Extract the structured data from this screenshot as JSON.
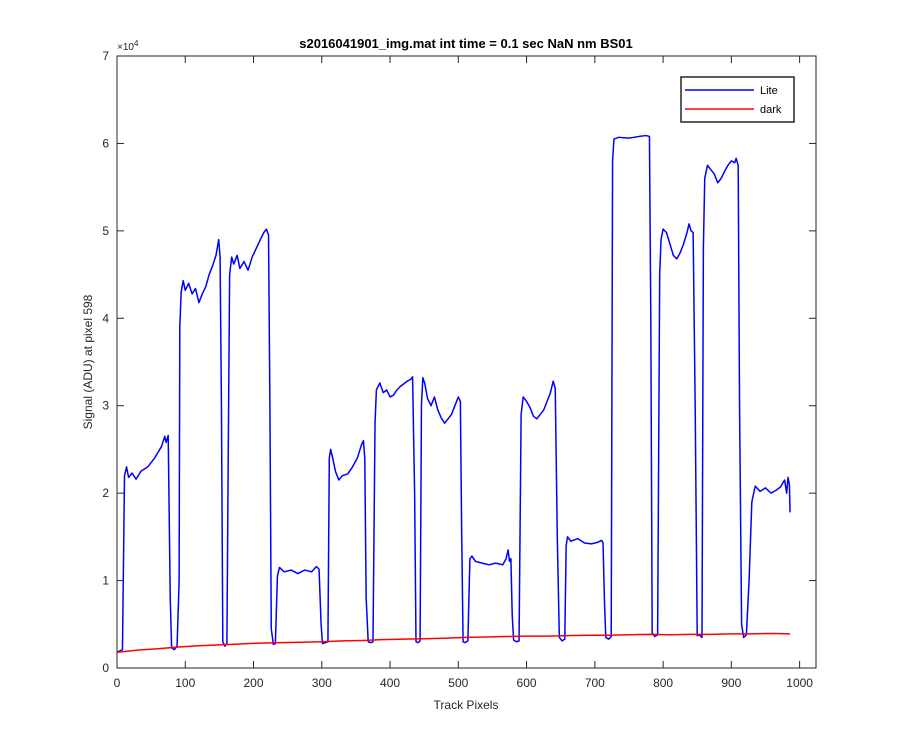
{
  "chart_data": {
    "type": "line",
    "title": "s2016041901_img.mat int time = 0.1 sec  NaN nm BS01",
    "xlabel": "Track Pixels",
    "ylabel": "Signal (ADU) at pixel 598",
    "xlim": [
      0,
      1024
    ],
    "ylim": [
      0,
      70000
    ],
    "x_ticks": [
      0,
      100,
      200,
      300,
      400,
      500,
      600,
      700,
      800,
      900,
      1000
    ],
    "y_ticks": [
      0,
      10000,
      20000,
      30000,
      40000,
      50000,
      60000,
      70000
    ],
    "y_tick_labels": [
      "0",
      "1",
      "2",
      "3",
      "4",
      "5",
      "6",
      "7"
    ],
    "y_exponent_label": "×10",
    "y_exponent_power": "4",
    "grid": false,
    "legend_position": "top-right",
    "series": [
      {
        "name": "Lite",
        "color": "#0000ff",
        "points": [
          [
            0,
            1800
          ],
          [
            5,
            2000
          ],
          [
            8,
            2100
          ],
          [
            11,
            22000
          ],
          [
            14,
            23000
          ],
          [
            17,
            21800
          ],
          [
            22,
            22300
          ],
          [
            28,
            21600
          ],
          [
            35,
            22500
          ],
          [
            45,
            23000
          ],
          [
            55,
            24000
          ],
          [
            65,
            25300
          ],
          [
            70,
            26500
          ],
          [
            72,
            25800
          ],
          [
            75,
            26600
          ],
          [
            78,
            8000
          ],
          [
            80,
            2300
          ],
          [
            84,
            2100
          ],
          [
            88,
            2500
          ],
          [
            91,
            10000
          ],
          [
            92,
            39000
          ],
          [
            94,
            43000
          ],
          [
            97,
            44300
          ],
          [
            100,
            43200
          ],
          [
            105,
            44000
          ],
          [
            110,
            42800
          ],
          [
            115,
            43400
          ],
          [
            120,
            41800
          ],
          [
            125,
            42800
          ],
          [
            130,
            43600
          ],
          [
            135,
            45000
          ],
          [
            140,
            46000
          ],
          [
            145,
            47200
          ],
          [
            149,
            49000
          ],
          [
            151,
            47000
          ],
          [
            153,
            30000
          ],
          [
            155,
            3000
          ],
          [
            158,
            2500
          ],
          [
            161,
            2800
          ],
          [
            163,
            25000
          ],
          [
            165,
            45000
          ],
          [
            168,
            47000
          ],
          [
            171,
            46200
          ],
          [
            176,
            47200
          ],
          [
            180,
            45700
          ],
          [
            186,
            46500
          ],
          [
            192,
            45500
          ],
          [
            198,
            47000
          ],
          [
            204,
            48000
          ],
          [
            210,
            49000
          ],
          [
            215,
            49800
          ],
          [
            219,
            50200
          ],
          [
            222,
            49500
          ],
          [
            224,
            30000
          ],
          [
            226,
            4500
          ],
          [
            229,
            2700
          ],
          [
            232,
            2800
          ],
          [
            235,
            10500
          ],
          [
            238,
            11500
          ],
          [
            245,
            11000
          ],
          [
            255,
            11200
          ],
          [
            265,
            10800
          ],
          [
            275,
            11200
          ],
          [
            285,
            11000
          ],
          [
            292,
            11600
          ],
          [
            296,
            11300
          ],
          [
            299,
            5000
          ],
          [
            301,
            2800
          ],
          [
            305,
            2900
          ],
          [
            309,
            3000
          ],
          [
            311,
            24000
          ],
          [
            313,
            25000
          ],
          [
            316,
            24000
          ],
          [
            320,
            22500
          ],
          [
            325,
            21500
          ],
          [
            330,
            22000
          ],
          [
            338,
            22200
          ],
          [
            345,
            23000
          ],
          [
            352,
            24000
          ],
          [
            358,
            25500
          ],
          [
            361,
            26000
          ],
          [
            363,
            24000
          ],
          [
            365,
            8000
          ],
          [
            368,
            3000
          ],
          [
            372,
            2900
          ],
          [
            375,
            3000
          ],
          [
            378,
            28000
          ],
          [
            380,
            31800
          ],
          [
            385,
            32600
          ],
          [
            390,
            31500
          ],
          [
            395,
            31800
          ],
          [
            400,
            31000
          ],
          [
            405,
            31200
          ],
          [
            410,
            31800
          ],
          [
            415,
            32200
          ],
          [
            420,
            32500
          ],
          [
            425,
            32800
          ],
          [
            430,
            33000
          ],
          [
            433,
            33300
          ],
          [
            436,
            20000
          ],
          [
            438,
            3000
          ],
          [
            441,
            2900
          ],
          [
            444,
            3100
          ],
          [
            446,
            30000
          ],
          [
            448,
            33200
          ],
          [
            451,
            32500
          ],
          [
            455,
            30800
          ],
          [
            460,
            30000
          ],
          [
            465,
            31000
          ],
          [
            470,
            29500
          ],
          [
            475,
            28600
          ],
          [
            480,
            28000
          ],
          [
            485,
            28500
          ],
          [
            490,
            29000
          ],
          [
            495,
            30000
          ],
          [
            500,
            31000
          ],
          [
            503,
            30500
          ],
          [
            505,
            15000
          ],
          [
            507,
            3000
          ],
          [
            510,
            2900
          ],
          [
            514,
            3100
          ],
          [
            517,
            12500
          ],
          [
            520,
            12800
          ],
          [
            525,
            12200
          ],
          [
            535,
            12000
          ],
          [
            545,
            11800
          ],
          [
            555,
            12000
          ],
          [
            565,
            11800
          ],
          [
            570,
            12500
          ],
          [
            573,
            13500
          ],
          [
            575,
            12200
          ],
          [
            577,
            12500
          ],
          [
            579,
            6000
          ],
          [
            581,
            3200
          ],
          [
            585,
            3000
          ],
          [
            589,
            3100
          ],
          [
            592,
            29000
          ],
          [
            595,
            31000
          ],
          [
            600,
            30500
          ],
          [
            605,
            29800
          ],
          [
            610,
            28800
          ],
          [
            615,
            28500
          ],
          [
            620,
            29000
          ],
          [
            625,
            29500
          ],
          [
            630,
            30500
          ],
          [
            635,
            31500
          ],
          [
            639,
            32800
          ],
          [
            642,
            32000
          ],
          [
            645,
            15000
          ],
          [
            648,
            3500
          ],
          [
            652,
            3100
          ],
          [
            656,
            3300
          ],
          [
            658,
            14000
          ],
          [
            660,
            15000
          ],
          [
            665,
            14500
          ],
          [
            675,
            14800
          ],
          [
            685,
            14300
          ],
          [
            695,
            14200
          ],
          [
            705,
            14400
          ],
          [
            710,
            14600
          ],
          [
            712,
            14300
          ],
          [
            714,
            8000
          ],
          [
            716,
            3500
          ],
          [
            720,
            3300
          ],
          [
            724,
            3600
          ],
          [
            726,
            58000
          ],
          [
            728,
            60500
          ],
          [
            735,
            60700
          ],
          [
            750,
            60600
          ],
          [
            765,
            60800
          ],
          [
            775,
            60900
          ],
          [
            780,
            60800
          ],
          [
            782,
            40000
          ],
          [
            784,
            4000
          ],
          [
            788,
            3600
          ],
          [
            792,
            3800
          ],
          [
            795,
            45000
          ],
          [
            797,
            49000
          ],
          [
            800,
            50200
          ],
          [
            805,
            49800
          ],
          [
            810,
            48500
          ],
          [
            815,
            47200
          ],
          [
            820,
            46800
          ],
          [
            825,
            47500
          ],
          [
            830,
            48500
          ],
          [
            835,
            49800
          ],
          [
            838,
            50800
          ],
          [
            841,
            50000
          ],
          [
            844,
            49800
          ],
          [
            847,
            30000
          ],
          [
            850,
            3700
          ],
          [
            853,
            3800
          ],
          [
            857,
            3500
          ],
          [
            859,
            48000
          ],
          [
            861,
            56000
          ],
          [
            865,
            57500
          ],
          [
            870,
            57000
          ],
          [
            875,
            56500
          ],
          [
            880,
            55500
          ],
          [
            885,
            56000
          ],
          [
            890,
            56800
          ],
          [
            895,
            57500
          ],
          [
            900,
            58000
          ],
          [
            905,
            57800
          ],
          [
            907,
            58300
          ],
          [
            910,
            57500
          ],
          [
            912,
            30000
          ],
          [
            915,
            5000
          ],
          [
            918,
            3500
          ],
          [
            922,
            3800
          ],
          [
            926,
            10000
          ],
          [
            930,
            19000
          ],
          [
            935,
            20800
          ],
          [
            942,
            20200
          ],
          [
            950,
            20600
          ],
          [
            958,
            20000
          ],
          [
            965,
            20300
          ],
          [
            972,
            20700
          ],
          [
            978,
            21500
          ],
          [
            981,
            20000
          ],
          [
            983,
            21800
          ],
          [
            985,
            21000
          ],
          [
            986,
            17800
          ]
        ]
      },
      {
        "name": "dark",
        "color": "#ff0000",
        "points": [
          [
            0,
            1800
          ],
          [
            30,
            2050
          ],
          [
            60,
            2200
          ],
          [
            90,
            2400
          ],
          [
            120,
            2550
          ],
          [
            150,
            2650
          ],
          [
            180,
            2750
          ],
          [
            210,
            2850
          ],
          [
            240,
            2900
          ],
          [
            270,
            2950
          ],
          [
            300,
            3000
          ],
          [
            330,
            3100
          ],
          [
            360,
            3150
          ],
          [
            390,
            3250
          ],
          [
            420,
            3300
          ],
          [
            450,
            3350
          ],
          [
            480,
            3400
          ],
          [
            510,
            3500
          ],
          [
            540,
            3550
          ],
          [
            570,
            3600
          ],
          [
            600,
            3650
          ],
          [
            630,
            3650
          ],
          [
            660,
            3700
          ],
          [
            690,
            3750
          ],
          [
            720,
            3750
          ],
          [
            750,
            3800
          ],
          [
            780,
            3850
          ],
          [
            810,
            3800
          ],
          [
            840,
            3850
          ],
          [
            870,
            3850
          ],
          [
            900,
            3900
          ],
          [
            930,
            3900
          ],
          [
            960,
            3950
          ],
          [
            986,
            3900
          ]
        ]
      }
    ]
  }
}
